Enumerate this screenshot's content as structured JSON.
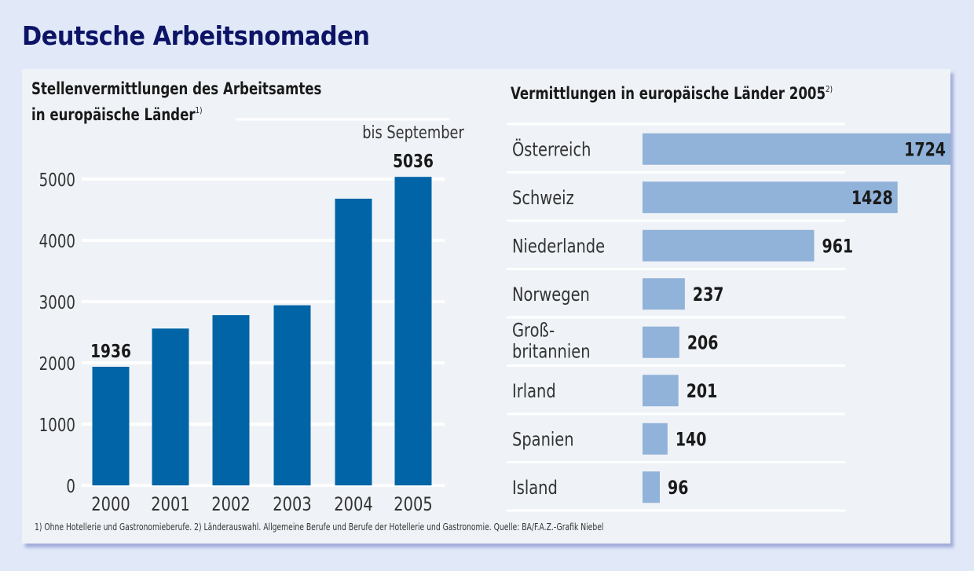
{
  "title": "Deutsche Arbeitsnomaden",
  "footnote": "1) Ohne Hotellerie und Gastronomieberufe. 2) Länderauswahl. Allgemeine Berufe und Berufe der Hotellerie und Gastronomie. Quelle: BA/F.A.Z.-Grafik Niebel",
  "colors": {
    "left_bar": "#0064a6",
    "right_bar": "#91b2d9",
    "gridline": "#ffffff",
    "title": "#0d1466"
  },
  "chart_data": [
    {
      "type": "bar",
      "title_line1": "Stellenvermittlungen des Arbeitsamtes",
      "title_line2": "in europäische Länder",
      "title_footnote_mark": "1)",
      "annotation": "bis September",
      "categories": [
        "2000",
        "2001",
        "2002",
        "2003",
        "2004",
        "2005"
      ],
      "values": [
        1936,
        2560,
        2780,
        2940,
        4680,
        5036
      ],
      "data_labels": [
        {
          "index": 0,
          "text": "1936"
        },
        {
          "index": 5,
          "text": "5036"
        }
      ],
      "yticks": [
        "0",
        "1000",
        "2000",
        "3000",
        "4000",
        "5000"
      ],
      "ylim": [
        0,
        5000
      ],
      "grid": true,
      "xlabel": "",
      "ylabel": ""
    },
    {
      "type": "bar",
      "orientation": "horizontal",
      "title": "Vermittlungen in europäische Länder 2005",
      "title_footnote_mark": "2)",
      "categories": [
        "Österreich",
        "Schweiz",
        "Niederlande",
        "Norwegen",
        "Groß-\nbritannien",
        "Irland",
        "Spanien",
        "Island"
      ],
      "category_lines": [
        [
          "Österreich"
        ],
        [
          "Schweiz"
        ],
        [
          "Niederlande"
        ],
        [
          "Norwegen"
        ],
        [
          "Groß-",
          "britannien"
        ],
        [
          "Irland"
        ],
        [
          "Spanien"
        ],
        [
          "Island"
        ]
      ],
      "values": [
        1724,
        1428,
        961,
        237,
        206,
        201,
        140,
        96
      ],
      "labels": [
        "1724",
        "1428",
        "961",
        "237",
        "206",
        "201",
        "140",
        "96"
      ],
      "grid": true
    }
  ]
}
